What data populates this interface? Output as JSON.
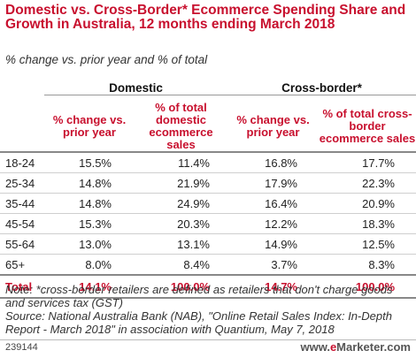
{
  "header": {
    "title": "Domestic vs. Cross-Border* Ecommerce Spending Share and Growth in Australia, 12 months ending March 2018",
    "subtitle": "% change vs. prior year and % of total"
  },
  "chart_data": {
    "type": "table",
    "column_groups": [
      "Domestic",
      "Cross-border*"
    ],
    "columns": [
      "% change vs. prior year",
      "% of total domestic ecommerce sales",
      "% change vs. prior year",
      "% of total cross-border ecommerce sales"
    ],
    "rows": [
      {
        "label": "18-24",
        "values": [
          "15.5%",
          "11.4%",
          "16.8%",
          "17.7%"
        ]
      },
      {
        "label": "25-34",
        "values": [
          "14.8%",
          "21.9%",
          "17.9%",
          "22.3%"
        ]
      },
      {
        "label": "35-44",
        "values": [
          "14.8%",
          "24.9%",
          "16.4%",
          "20.9%"
        ]
      },
      {
        "label": "45-54",
        "values": [
          "15.3%",
          "20.3%",
          "12.2%",
          "18.3%"
        ]
      },
      {
        "label": "55-64",
        "values": [
          "13.0%",
          "13.1%",
          "14.9%",
          "12.5%"
        ]
      },
      {
        "label": "65+",
        "values": [
          "8.0%",
          "8.4%",
          "3.7%",
          "8.3%"
        ]
      }
    ],
    "total": {
      "label": "Total",
      "values": [
        "14.1%",
        "100.0%",
        "14.7%",
        "100.0%"
      ]
    }
  },
  "footer": {
    "note": "Note: *cross-border retailers are defined as retailers that don't charge goods and services tax (GST)",
    "source": "Source: National Australia Bank (NAB), \"Online Retail Sales Index: In-Depth Report - March 2018\" in association with Quantium, May 7, 2018",
    "chart_id": "239144",
    "brand_prefix": "www.",
    "brand_e": "e",
    "brand_suffix": "Marketer.com"
  },
  "colors": {
    "accent": "#c8102e",
    "text": "#222222",
    "rule": "#888888"
  }
}
